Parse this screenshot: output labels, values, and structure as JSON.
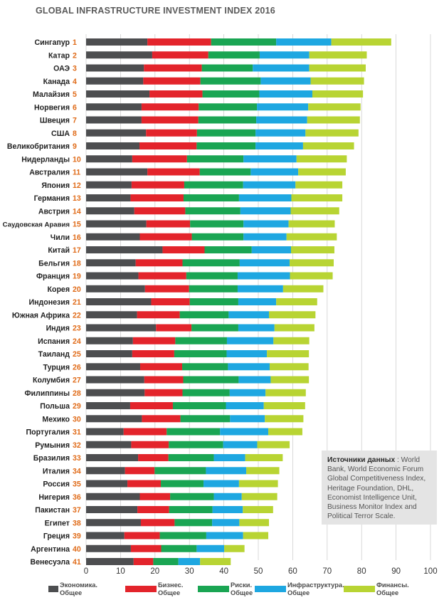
{
  "chart_data": {
    "type": "bar",
    "orientation": "horizontal",
    "stacked": true,
    "title": "GLOBAL INFRASTRUCTURE INVESTMENT INDEX 2016",
    "xlim": [
      0,
      100
    ],
    "xticks": [
      0,
      10,
      20,
      30,
      40,
      50,
      60,
      70,
      80,
      90,
      100
    ],
    "grid": "vertical",
    "legend_position": "bottom",
    "series": [
      {
        "name": "Экономика. Общее",
        "label": "Экономика.\nОбщее",
        "color": "#4d4e50"
      },
      {
        "name": "Бизнес. Общее",
        "label": "Бизнес.\nОбщее",
        "color": "#e3242b"
      },
      {
        "name": "Риски. Общее",
        "label": "Риски.\nОбщее",
        "color": "#1aa553"
      },
      {
        "name": "Инфраструктура. Общее",
        "label": "Инфраструктура.\nОбщее",
        "color": "#1ea7e1"
      },
      {
        "name": "Финансы. Общее",
        "label": "Финансы.\nОбщее",
        "color": "#b8d433"
      }
    ],
    "rows": [
      {
        "country": "Сингапур",
        "rank": "1",
        "values": [
          17.8,
          18.5,
          18.9,
          16.0,
          17.4
        ]
      },
      {
        "country": "Катар",
        "rank": "2",
        "values": [
          19.2,
          16.3,
          14.9,
          14.4,
          16.7
        ]
      },
      {
        "country": "ОАЭ",
        "rank": "3",
        "values": [
          16.8,
          16.8,
          14.8,
          16.4,
          16.4
        ]
      },
      {
        "country": "Канада",
        "rank": "4",
        "values": [
          16.6,
          16.6,
          17.5,
          14.5,
          15.5
        ]
      },
      {
        "country": "Малайзия",
        "rank": "5",
        "values": [
          18.4,
          15.4,
          16.5,
          15.4,
          14.7
        ]
      },
      {
        "country": "Норвегия",
        "rank": "6",
        "values": [
          16.1,
          16.6,
          16.9,
          14.9,
          15.2
        ]
      },
      {
        "country": "Швеция",
        "rank": "7",
        "values": [
          16.1,
          16.5,
          16.8,
          14.8,
          15.3
        ]
      },
      {
        "country": "США",
        "rank": "8",
        "values": [
          17.4,
          14.8,
          17.0,
          14.5,
          15.4
        ]
      },
      {
        "country": "Великобритания",
        "rank": "9",
        "values": [
          15.5,
          16.6,
          17.1,
          13.8,
          14.8
        ]
      },
      {
        "country": "Нидерланды",
        "rank": "10",
        "values": [
          13.4,
          15.9,
          16.4,
          15.4,
          14.6
        ]
      },
      {
        "country": "Австралия",
        "rank": "11",
        "values": [
          17.8,
          15.2,
          14.8,
          13.8,
          13.8
        ]
      },
      {
        "country": "Япония",
        "rank": "12",
        "values": [
          13.2,
          15.3,
          17.1,
          15.2,
          13.6
        ]
      },
      {
        "country": "Германия",
        "rank": "13",
        "values": [
          12.9,
          15.4,
          16.1,
          15.2,
          14.8
        ]
      },
      {
        "country": "Австрия",
        "rank": "14",
        "values": [
          14.0,
          14.8,
          16.0,
          14.6,
          14.1
        ]
      },
      {
        "country": "Саудовская Аравия",
        "rank": "15",
        "values": [
          17.5,
          12.7,
          15.5,
          13.1,
          13.4
        ]
      },
      {
        "country": "Чили",
        "rank": "16",
        "values": [
          15.6,
          15.1,
          15.0,
          12.5,
          14.6
        ]
      },
      {
        "country": "Китай",
        "rank": "17",
        "values": [
          22.2,
          12.2,
          13.7,
          11.4,
          12.6
        ]
      },
      {
        "country": "Бельгия",
        "rank": "18",
        "values": [
          14.4,
          13.6,
          16.6,
          14.5,
          12.8
        ]
      },
      {
        "country": "Франция",
        "rank": "19",
        "values": [
          15.2,
          13.9,
          14.9,
          15.2,
          12.4
        ]
      },
      {
        "country": "Корея",
        "rank": "20",
        "values": [
          17.1,
          12.8,
          14.1,
          13.2,
          11.7
        ]
      },
      {
        "country": "Индонезия",
        "rank": "21",
        "values": [
          18.9,
          11.2,
          14.1,
          11.0,
          11.9
        ]
      },
      {
        "country": "Южная Африка",
        "rank": "22",
        "values": [
          14.8,
          12.4,
          14.2,
          11.7,
          13.5
        ]
      },
      {
        "country": "Индия",
        "rank": "23",
        "values": [
          20.3,
          10.3,
          13.6,
          10.5,
          11.6
        ]
      },
      {
        "country": "Испания",
        "rank": "24",
        "values": [
          13.6,
          12.3,
          15.0,
          13.5,
          10.4
        ]
      },
      {
        "country": "Таиланд",
        "rank": "25",
        "values": [
          13.4,
          12.2,
          15.2,
          11.7,
          12.2
        ]
      },
      {
        "country": "Турция",
        "rank": "26",
        "values": [
          15.7,
          12.2,
          13.3,
          12.1,
          11.3
        ]
      },
      {
        "country": "Колумбия",
        "rank": "27",
        "values": [
          16.9,
          11.3,
          16.1,
          9.3,
          11.1
        ]
      },
      {
        "country": "Филиппины",
        "rank": "28",
        "values": [
          17.0,
          11.0,
          13.7,
          10.4,
          11.7
        ]
      },
      {
        "country": "Польша",
        "rank": "29",
        "values": [
          12.8,
          12.4,
          15.4,
          11.0,
          12.0
        ]
      },
      {
        "country": "Мехико",
        "rank": "30",
        "values": [
          16.2,
          11.2,
          14.4,
          10.1,
          11.2
        ]
      },
      {
        "country": "Португалия",
        "rank": "31",
        "values": [
          10.9,
          12.5,
          15.5,
          14.0,
          9.9
        ]
      },
      {
        "country": "Румыния",
        "rank": "32",
        "values": [
          13.1,
          10.9,
          15.8,
          9.9,
          9.4
        ]
      },
      {
        "country": "Бразилия",
        "rank": "33",
        "values": [
          15.1,
          8.8,
          13.2,
          9.1,
          10.9
        ]
      },
      {
        "country": "Италия",
        "rank": "34",
        "values": [
          11.3,
          8.6,
          14.9,
          11.7,
          9.6
        ]
      },
      {
        "country": "Россия",
        "rank": "35",
        "values": [
          12.0,
          9.7,
          12.4,
          10.3,
          11.3
        ]
      },
      {
        "country": "Нигерия",
        "rank": "36",
        "values": [
          15.6,
          8.8,
          12.7,
          8.1,
          10.3
        ]
      },
      {
        "country": "Пакистан",
        "rank": "37",
        "values": [
          14.9,
          9.2,
          12.6,
          8.8,
          8.8
        ]
      },
      {
        "country": "Египет",
        "rank": "38",
        "values": [
          15.9,
          9.8,
          10.9,
          7.9,
          8.6
        ]
      },
      {
        "country": "Греция",
        "rank": "39",
        "values": [
          11.1,
          10.3,
          13.5,
          10.7,
          7.3
        ]
      },
      {
        "country": "Аргентина",
        "rank": "40",
        "values": [
          13.0,
          8.8,
          10.3,
          8.0,
          5.9
        ]
      },
      {
        "country": "Венесуэла",
        "rank": "41",
        "values": [
          13.8,
          5.7,
          7.3,
          6.3,
          8.9
        ]
      }
    ]
  },
  "source_note": {
    "heading": "Источники данных",
    "text": " : World Bank, World Economic Forum Global Competitiveness Index, Heritage Foundation, DHL, Economist Intelligence Unit, Business Monitor Index and Political Terror Scale."
  },
  "colors": {
    "rank": "#e06c1a",
    "label": "#222222",
    "axis": "#333333",
    "grid": "#cfcfcf"
  }
}
